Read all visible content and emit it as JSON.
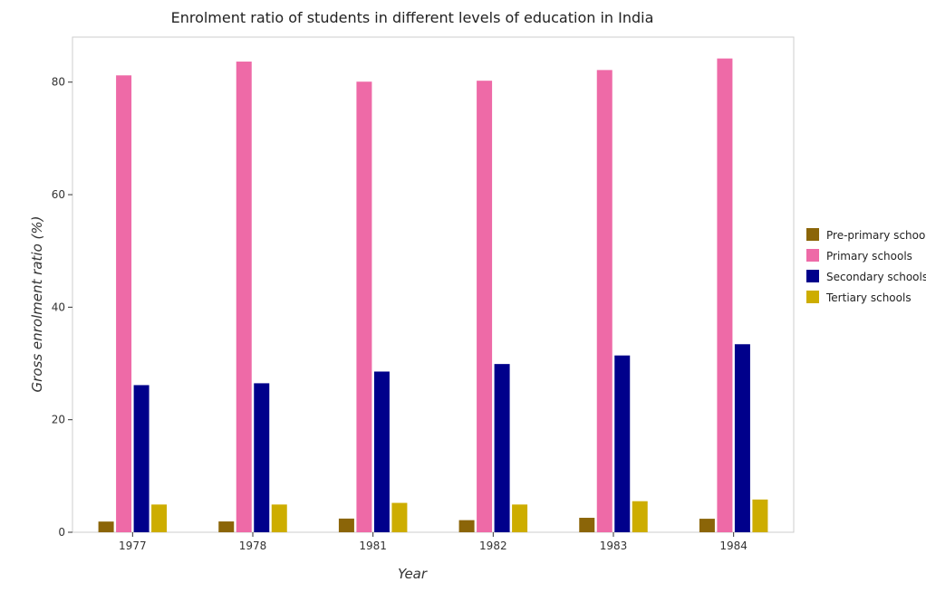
{
  "chart_data": {
    "type": "bar",
    "title": "Enrolment ratio of students in different levels of education in India",
    "xlabel": "Year",
    "ylabel": "Gross enrolment ratio (%)",
    "categories": [
      "1977",
      "1978",
      "1981",
      "1982",
      "1983",
      "1984"
    ],
    "ylim": [
      0,
      88
    ],
    "yticks": [
      0,
      20,
      40,
      60,
      80
    ],
    "grid": false,
    "legend_position": "right",
    "series": [
      {
        "name": "Pre-primary schools",
        "color": "#8b6508",
        "values": [
          1.9,
          1.92,
          2.43,
          2.15,
          2.57,
          2.4
        ]
      },
      {
        "name": "Primary schools",
        "color": "#ee6aa7",
        "values": [
          81.2,
          83.65,
          80.08,
          80.25,
          82.15,
          84.2
        ]
      },
      {
        "name": "Secondary schools",
        "color": "#00008b",
        "values": [
          26.15,
          26.48,
          28.56,
          29.9,
          31.42,
          33.42
        ]
      },
      {
        "name": "Tertiary schools",
        "color": "#cdad00",
        "values": [
          4.93,
          4.93,
          5.22,
          4.93,
          5.52,
          5.82
        ]
      }
    ]
  }
}
